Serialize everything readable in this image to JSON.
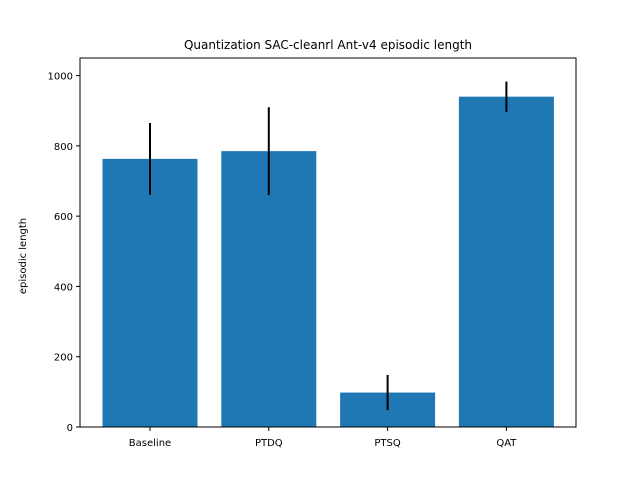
{
  "chart_data": {
    "type": "bar",
    "title": "Quantization SAC-cleanrl Ant-v4 episodic length",
    "xlabel": "",
    "ylabel": "episodic length",
    "categories": [
      "Baseline",
      "PTDQ",
      "PTSQ",
      "QAT"
    ],
    "values": [
      763,
      785,
      98,
      940
    ],
    "errors": [
      102,
      125,
      50,
      43
    ],
    "ylim": [
      0,
      1050
    ],
    "yticks": [
      0,
      200,
      400,
      600,
      800,
      1000
    ],
    "bar_color": "#1f77b4",
    "error_color": "#000000",
    "grid": false,
    "legend": "none"
  }
}
